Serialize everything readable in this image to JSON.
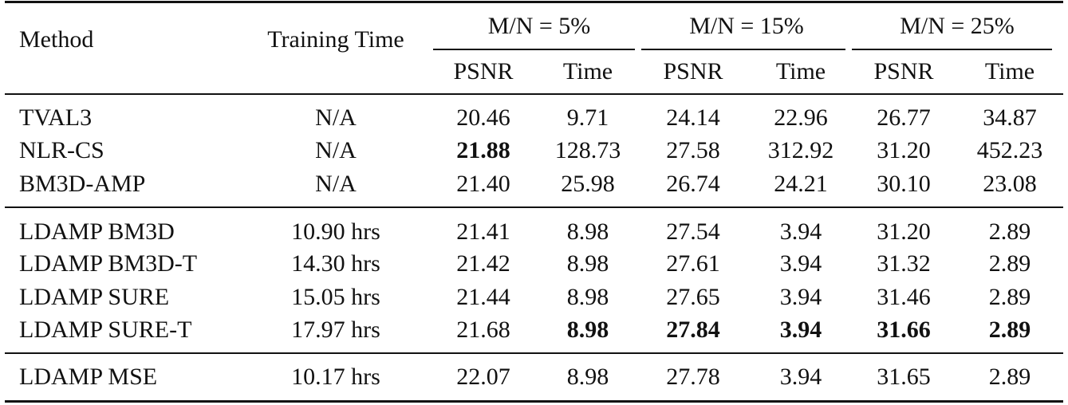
{
  "table": {
    "header": {
      "method": "Method",
      "training_time": "Training Time",
      "groups": [
        "M/N = 5%",
        "M/N = 15%",
        "M/N = 25%"
      ],
      "subheaders": [
        "PSNR",
        "Time",
        "PSNR",
        "Time",
        "PSNR",
        "Time"
      ]
    },
    "sections": [
      [
        [
          "TVAL3",
          "N/A",
          "20.46",
          "9.71",
          "24.14",
          "22.96",
          "26.77",
          "34.87"
        ],
        [
          "NLR-CS",
          "N/A",
          {
            "text": "21.88",
            "bold": true
          },
          "128.73",
          "27.58",
          "312.92",
          "31.20",
          "452.23"
        ],
        [
          "BM3D-AMP",
          "N/A",
          "21.40",
          "25.98",
          "26.74",
          "24.21",
          "30.10",
          "23.08"
        ]
      ],
      [
        [
          "LDAMP BM3D",
          "10.90 hrs",
          "21.41",
          "8.98",
          "27.54",
          "3.94",
          "31.20",
          "2.89"
        ],
        [
          "LDAMP BM3D-T",
          "14.30 hrs",
          "21.42",
          "8.98",
          "27.61",
          "3.94",
          "31.32",
          "2.89"
        ],
        [
          "LDAMP SURE",
          "15.05 hrs",
          "21.44",
          "8.98",
          "27.65",
          "3.94",
          "31.46",
          "2.89"
        ],
        [
          "LDAMP SURE-T",
          "17.97 hrs",
          "21.68",
          {
            "text": "8.98",
            "bold": true
          },
          {
            "text": "27.84",
            "bold": true
          },
          {
            "text": "3.94",
            "bold": true
          },
          {
            "text": "31.66",
            "bold": true
          },
          {
            "text": "2.89",
            "bold": true
          }
        ]
      ],
      [
        [
          "LDAMP MSE",
          "10.17 hrs",
          "22.07",
          "8.98",
          "27.78",
          "3.94",
          "31.65",
          "2.89"
        ]
      ]
    ]
  }
}
